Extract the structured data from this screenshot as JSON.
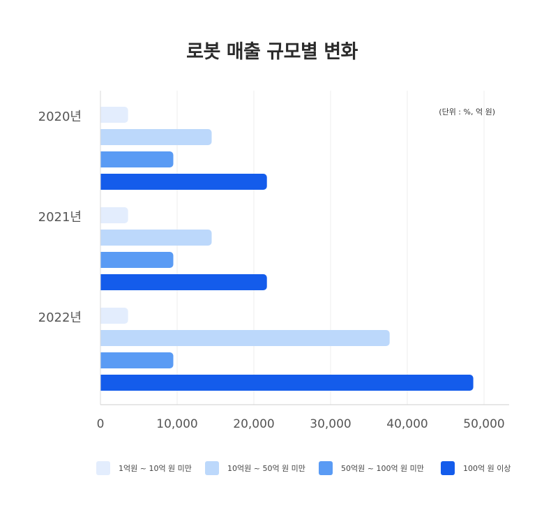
{
  "chart_data": {
    "type": "bar",
    "orientation": "horizontal",
    "title": "로봇 매출 규모별 변화",
    "unit_note": "(단위 : %, 억 원)",
    "categories": [
      "2020년",
      "2021년",
      "2022년"
    ],
    "series": [
      {
        "name": "1억원 ~ 10억 원 미만",
        "color": "#e3edfd",
        "values": [
          3600,
          3600,
          3600
        ]
      },
      {
        "name": "10억원 ~ 50억 원 미만",
        "color": "#bcd8fb",
        "values": [
          14500,
          14500,
          37700
        ]
      },
      {
        "name": "50억원 ~ 100억 원 미만",
        "color": "#5a9bf4",
        "values": [
          9500,
          9500,
          9500
        ]
      },
      {
        "name": "100억 원 이상",
        "color": "#145ceb",
        "values": [
          21700,
          21700,
          48600
        ]
      }
    ],
    "xlim": [
      0,
      53000
    ],
    "xticks": [
      0,
      10000,
      20000,
      30000,
      40000,
      50000
    ],
    "xtick_labels": [
      "0",
      "10,000",
      "20,000",
      "30,000",
      "40,000",
      "50,000"
    ],
    "grid": "vertical",
    "legend_position": "bottom"
  }
}
